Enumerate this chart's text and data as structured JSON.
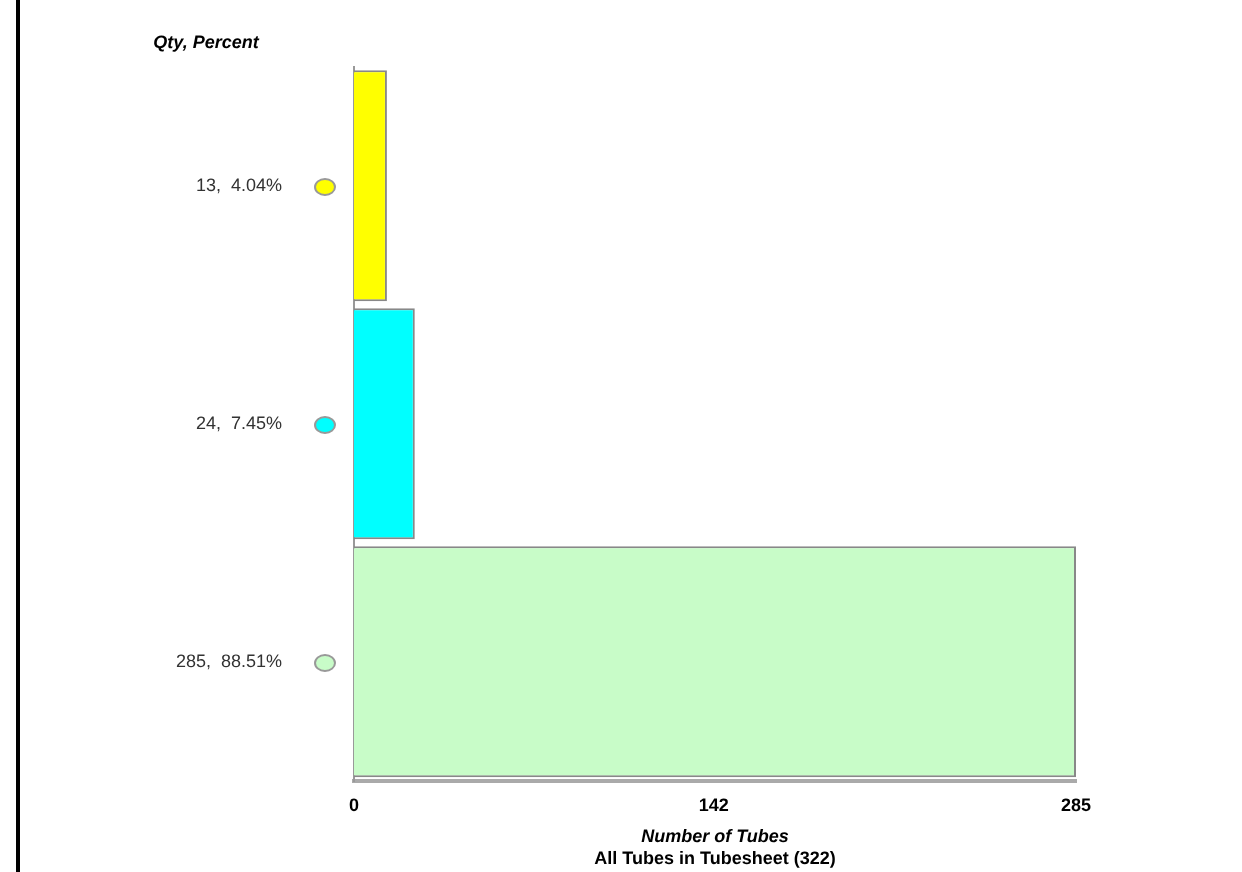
{
  "chart_data": {
    "type": "bar",
    "orientation": "horizontal",
    "ylabel": "Qty, Percent",
    "xlabel": "Number of Tubes",
    "annotations": [
      "All Tubes in Tubesheet (322)"
    ],
    "categories": [
      "13,  4.04%",
      "24,  7.45%",
      "285,  88.51%"
    ],
    "values": [
      13,
      24,
      285
    ],
    "colors": [
      "#ffff00",
      "#00ffff",
      "#c8fcc8"
    ],
    "xlim": [
      0,
      285
    ],
    "xticks": [
      0,
      142,
      285
    ],
    "grid": false,
    "legend": false
  }
}
